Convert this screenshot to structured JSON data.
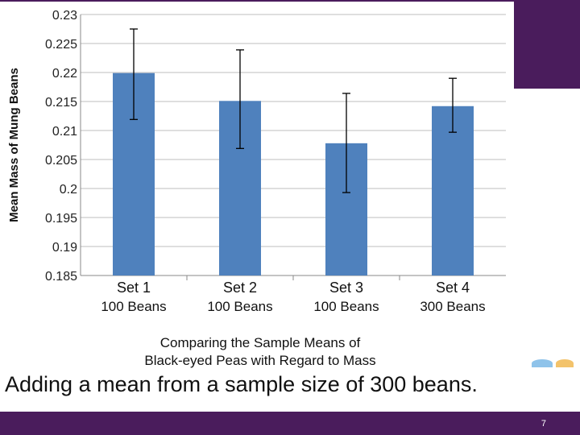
{
  "theme": {
    "purple": "#4a1c5c",
    "bar": "#4f81bd",
    "deco_blue": "#8fc3ea",
    "deco_orange": "#f3c36b"
  },
  "caption": "Adding a mean from a sample size of 300 beans.",
  "page_number": "7",
  "chart_data": {
    "type": "bar",
    "categories": [
      [
        "Set 1",
        "100 Beans"
      ],
      [
        "Set 2",
        "100 Beans"
      ],
      [
        "Set 3",
        "100 Beans"
      ],
      [
        "Set 4",
        "300 Beans"
      ]
    ],
    "values": [
      0.2199,
      0.2151,
      0.2078,
      0.2142
    ],
    "error_bars": [
      [
        0.2119,
        0.2275
      ],
      [
        0.2069,
        0.2239
      ],
      [
        0.1993,
        0.2164
      ],
      [
        0.2097,
        0.219
      ]
    ],
    "title": [
      "Comparing the Sample Means of",
      "Black-eyed Peas with Regard to Mass"
    ],
    "ylabel": "Mean Mass of Mung Beans",
    "ylim": [
      0.185,
      0.23
    ],
    "yticks": [
      "0.185",
      "0.19",
      "0.195",
      "0.2",
      "0.205",
      "0.21",
      "0.215",
      "0.22",
      "0.225",
      "0.23"
    ],
    "grid": true
  }
}
